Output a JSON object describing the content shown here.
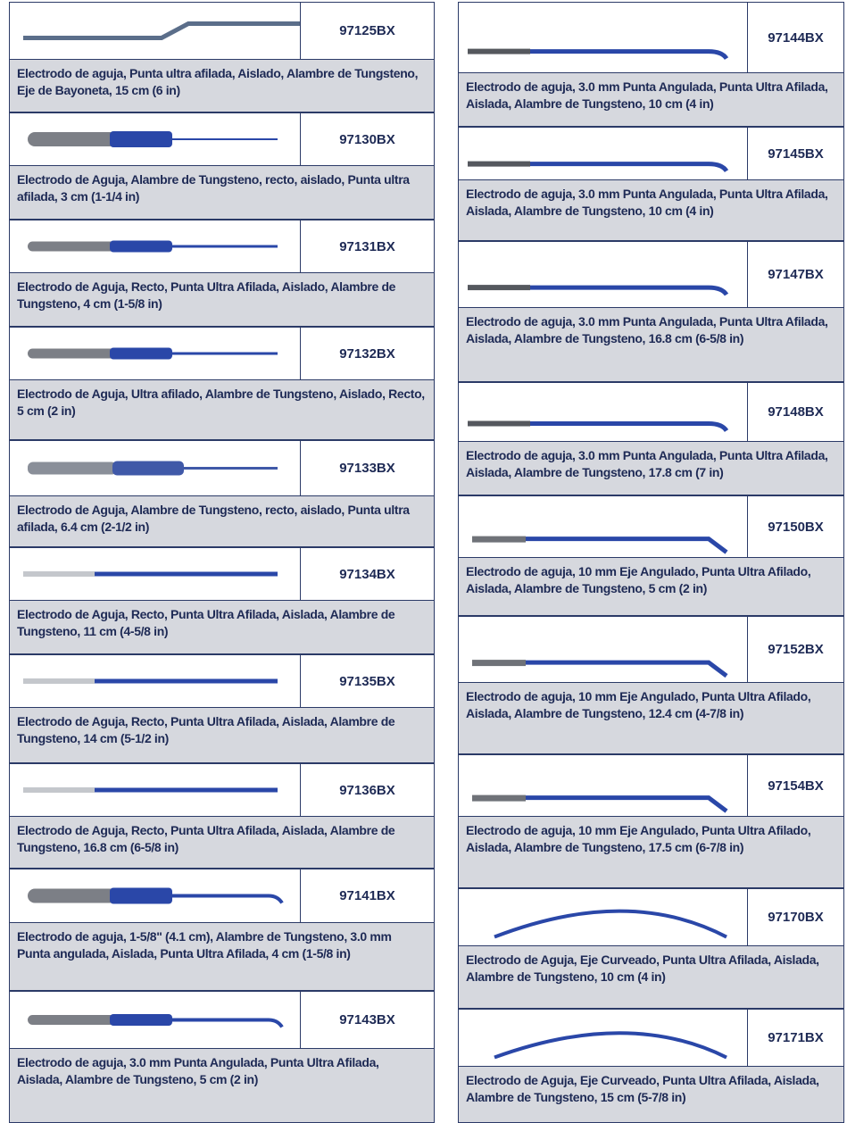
{
  "left": [
    {
      "code": "97125BX",
      "description": "Electrodo de aguja, Punta ultra afilada, Aislado, Alambre de Tungsteno, Eje de Bayoneta, 15 cm (6 in)"
    },
    {
      "code": "97130BX",
      "description": "Electrodo de Aguja, Alambre de Tungsteno, recto, aislado, Punta ultra afilada, 3 cm (1-1/4 in)"
    },
    {
      "code": "97131BX",
      "description": "Electrodo de Aguja, Recto, Punta Ultra Afilada, Aislado, Alambre de Tungsteno, 4 cm (1-5/8 in)"
    },
    {
      "code": "97132BX",
      "description": "Electrodo de Aguja, Ultra afilado, Alambre de Tungsteno, Aislado, Recto, 5 cm (2 in)"
    },
    {
      "code": "97133BX",
      "description": "Electrodo de Aguja, Alambre de Tungsteno, recto, aislado, Punta ultra afilada, 6.4 cm (2-1/2 in)"
    },
    {
      "code": "97134BX",
      "description": "Electrodo de Aguja, Recto, Punta Ultra Afilada, Aislada, Alambre de Tungsteno, 11 cm (4-5/8 in)"
    },
    {
      "code": "97135BX",
      "description": "Electrodo de Aguja, Recto, Punta Ultra Afilada, Aislada, Alambre de Tungsteno, 14 cm (5-1/2 in)"
    },
    {
      "code": "97136BX",
      "description": "Electrodo de Aguja, Recto, Punta Ultra Afilada, Aislada, Alambre de Tungsteno, 16.8 cm (6-5/8 in)"
    },
    {
      "code": "97141BX",
      "description": "Electrodo de aguja, 1-5/8\" (4.1 cm), Alambre de Tungsteno, 3.0 mm  Punta angulada, Aislada, Punta Ultra Afilada, 4 cm (1-5/8 in)"
    },
    {
      "code": "97143BX",
      "description": "Electrodo de aguja, 3.0 mm Punta Angulada, Punta Ultra Afilada, Aislada, Alambre de Tungsteno, 5 cm (2 in)"
    }
  ],
  "right": [
    {
      "code": "97144BX",
      "description": "Electrodo de aguja, 3.0 mm Punta Angulada, Punta Ultra Afilada, Aislada, Alambre de Tungsteno, 10 cm (4 in)"
    },
    {
      "code": "97145BX",
      "description": "Electrodo de aguja, 3.0 mm Punta Angulada, Punta Ultra Afilada, Aislada, Alambre de Tungsteno, 10 cm (4 in)"
    },
    {
      "code": "97147BX",
      "description": "Electrodo de aguja, 3.0 mm Punta Angulada, Punta Ultra Afilada, Aislada, Alambre de Tungsteno, 16.8 cm (6-5/8 in)"
    },
    {
      "code": "97148BX",
      "description": "Electrodo de aguja, 3.0 mm Punta Angulada, Punta Ultra Afilada, Aislada, Alambre de Tungsteno, 17.8 cm (7 in)"
    },
    {
      "code": "97150BX",
      "description": "Electrodo de aguja, 10 mm Eje Angulado, Punta Ultra Afilado, Aislada, Alambre de Tungsteno, 5 cm (2 in)"
    },
    {
      "code": "97152BX",
      "description": "Electrodo de aguja, 10 mm Eje Angulado, Punta Ultra Afilado, Aislada, Alambre de Tungsteno, 12.4 cm (4-7/8 in)"
    },
    {
      "code": "97154BX",
      "description": "Electrodo de aguja, 10 mm Eje Angulado, Punta Ultra Afilado, Aislada, Alambre de Tungsteno, 17.5 cm (6-7/8 in)"
    },
    {
      "code": "97170BX",
      "description": "Electrodo de Aguja, Eje Curveado, Punta Ultra Afilada, Aislada, Alambre de Tungsteno, 10 cm (4 in)"
    },
    {
      "code": "97171BX",
      "description": "Electrodo de Aguja, Eje Curveado, Punta Ultra Afilada, Aislada, Alambre de Tungsteno, 15 cm (5-7/8 in)"
    }
  ]
}
